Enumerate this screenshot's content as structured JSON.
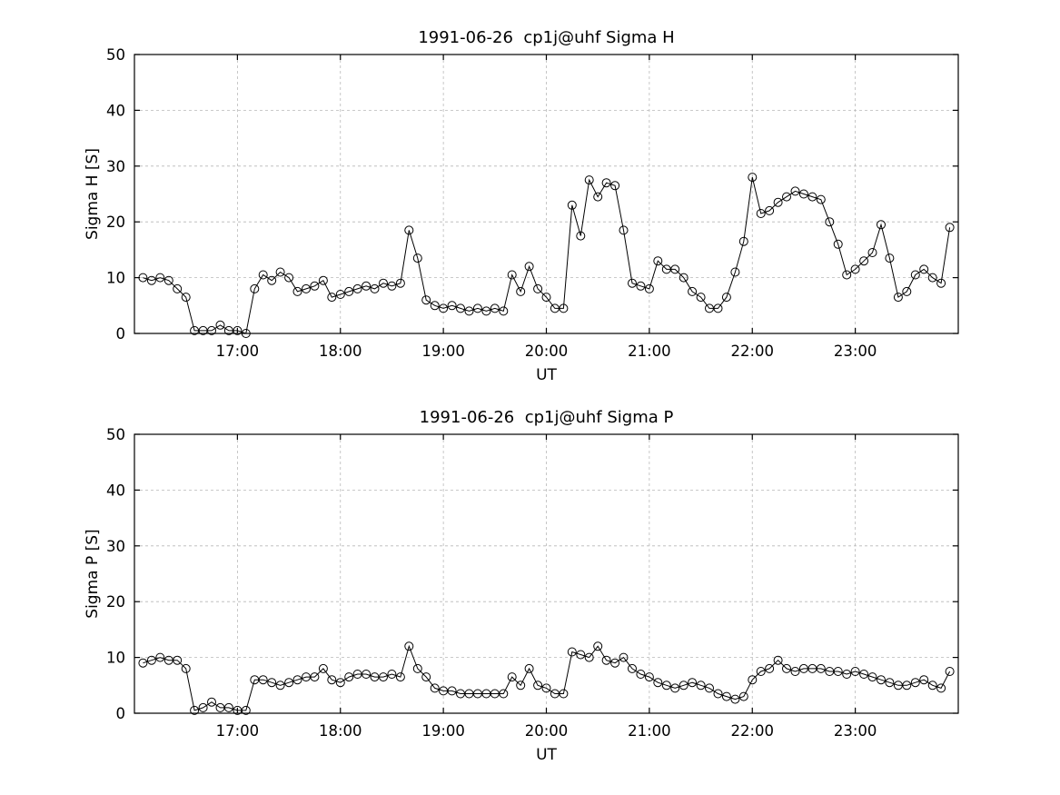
{
  "style": {
    "background": "#ffffff",
    "axis_color": "#000000",
    "grid_color": "#b8b8b8",
    "marker": "open-circle"
  },
  "chart_data": [
    {
      "type": "line",
      "name": "sigma-h",
      "title": "1991-06-26  cp1j@uhf Sigma H",
      "xlabel": "UT",
      "ylabel": "Sigma H [S]",
      "ylim": [
        0,
        50
      ],
      "yticks": [
        0,
        10,
        20,
        30,
        40,
        50
      ],
      "xlim_minutes": [
        960,
        1440
      ],
      "xtick_minutes": [
        1020,
        1080,
        1140,
        1200,
        1260,
        1320,
        1380
      ],
      "xtick_labels": [
        "17:00",
        "18:00",
        "19:00",
        "20:00",
        "21:00",
        "22:00",
        "23:00"
      ],
      "start_minute": 965,
      "step_minutes": 5,
      "line_color": "#000000",
      "grid": true,
      "legend": "none",
      "values": [
        10,
        9.5,
        10,
        9.5,
        8,
        6.5,
        0.5,
        0.5,
        0.5,
        1.5,
        0.5,
        0.5,
        0,
        8,
        10.5,
        9.5,
        11,
        10,
        7.5,
        8,
        8.5,
        9.5,
        6.5,
        7,
        7.5,
        8,
        8.5,
        8,
        9,
        8.5,
        9,
        18.5,
        13.5,
        6,
        5,
        4.5,
        5,
        4.5,
        4,
        4.5,
        4,
        4.5,
        4,
        10.5,
        7.5,
        12,
        8,
        6.5,
        4.5,
        4.5,
        23,
        17.5,
        27.5,
        24.5,
        27,
        26.5,
        18.5,
        9,
        8.5,
        8,
        13,
        11.5,
        11.5,
        10,
        7.5,
        6.5,
        4.5,
        4.5,
        6.5,
        11,
        16.5,
        28,
        21.5,
        22,
        23.5,
        24.5,
        25.5,
        25,
        24.5,
        24,
        20,
        16,
        10.5,
        11.5,
        13,
        14.5,
        19.5,
        13.5,
        6.5,
        7.5,
        10.5,
        11.5,
        10,
        9,
        19
      ]
    },
    {
      "type": "line",
      "name": "sigma-p",
      "title": "1991-06-26  cp1j@uhf Sigma P",
      "xlabel": "UT",
      "ylabel": "Sigma P [S]",
      "ylim": [
        0,
        50
      ],
      "yticks": [
        0,
        10,
        20,
        30,
        40,
        50
      ],
      "xlim_minutes": [
        960,
        1440
      ],
      "xtick_minutes": [
        1020,
        1080,
        1140,
        1200,
        1260,
        1320,
        1380
      ],
      "xtick_labels": [
        "17:00",
        "18:00",
        "19:00",
        "20:00",
        "21:00",
        "22:00",
        "23:00"
      ],
      "start_minute": 965,
      "step_minutes": 5,
      "line_color": "#000000",
      "grid": true,
      "legend": "none",
      "values": [
        9,
        9.5,
        10,
        9.5,
        9.5,
        8,
        0.5,
        1,
        2,
        1,
        1,
        0.5,
        0.5,
        6,
        6,
        5.5,
        5,
        5.5,
        6,
        6.5,
        6.5,
        8,
        6,
        5.5,
        6.5,
        7,
        7,
        6.5,
        6.5,
        7,
        6.5,
        12,
        8,
        6.5,
        4.5,
        4,
        4,
        3.5,
        3.5,
        3.5,
        3.5,
        3.5,
        3.5,
        6.5,
        5,
        8,
        5,
        4.5,
        3.5,
        3.5,
        11,
        10.5,
        10,
        12,
        9.5,
        9,
        10,
        8,
        7,
        6.5,
        5.5,
        5,
        4.5,
        5,
        5.5,
        5,
        4.5,
        3.5,
        3,
        2.5,
        3,
        6,
        7.5,
        8,
        9.5,
        8,
        7.5,
        8,
        8,
        8,
        7.5,
        7.5,
        7,
        7.5,
        7,
        6.5,
        6,
        5.5,
        5,
        5,
        5.5,
        6,
        5,
        4.5,
        7.5
      ]
    }
  ]
}
